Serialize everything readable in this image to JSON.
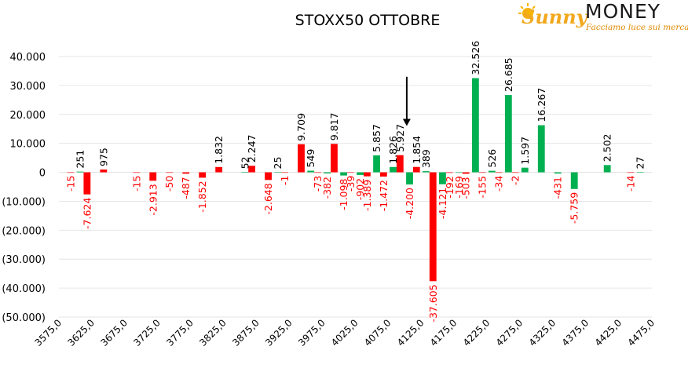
{
  "colors": {
    "put": "#ff0000",
    "call": "#00b050",
    "grid": "#e6e6e6",
    "arrow": "#000000"
  },
  "logo": {
    "script": "Sunny",
    "main": "MONEY",
    "tagline": "Facciamo luce sui mercati"
  },
  "chart_data": {
    "type": "bar",
    "title": "STOXX50 OTTOBRE",
    "xlabel": "",
    "ylabel": "",
    "ylim": [
      -50000,
      40000
    ],
    "yticks": [
      40000,
      30000,
      20000,
      10000,
      0,
      -10000,
      -20000,
      -30000,
      -40000,
      -50000
    ],
    "ytick_labels": [
      "40.000",
      "30.000",
      "20.000",
      "10.000",
      "0",
      "(10.000)",
      "(20.000)",
      "(30.000)",
      "(40.000)",
      "(50.000)"
    ],
    "xlim": [
      3575,
      4475
    ],
    "xtick_labels": [
      "3575,0",
      "3625,0",
      "3675,0",
      "3725,0",
      "3775,0",
      "3825,0",
      "3875,0",
      "3925,0",
      "3975,0",
      "4025,0",
      "4075,0",
      "4125,0",
      "4175,0",
      "4225,0",
      "4275,0",
      "4325,0",
      "4375,0",
      "4425,0",
      "4475,0"
    ],
    "annotation": {
      "type": "arrow",
      "x": 4112.5,
      "from_y": 33000,
      "to_y": 16000
    },
    "series": [
      {
        "color": "#00b050",
        "points": [
          [
            3612.5,
            251
          ],
          [
            3862.5,
            52
          ],
          [
            3912.5,
            25
          ],
          [
            3962.5,
            549
          ],
          [
            3987.5,
            -382
          ],
          [
            4012.5,
            -1098
          ],
          [
            4037.5,
            -902
          ],
          [
            4062.5,
            5857
          ],
          [
            4087.5,
            1826
          ],
          [
            4112.5,
            -4200
          ],
          [
            4137.5,
            389
          ],
          [
            4162.5,
            -4121
          ],
          [
            4187.5,
            -169
          ],
          [
            4212.5,
            32526
          ],
          [
            4237.5,
            526
          ],
          [
            4262.5,
            26685
          ],
          [
            4287.5,
            1597
          ],
          [
            4312.5,
            16267
          ],
          [
            4337.5,
            -431
          ],
          [
            4362.5,
            -5759
          ],
          [
            4412.5,
            2502
          ],
          [
            4462.5,
            27
          ]
        ],
        "labels": [
          "251",
          "52",
          "25",
          "549",
          "-382",
          "-1.098",
          "-902",
          "5.857",
          "1.826",
          "-4.200",
          "389",
          "-4.121",
          "-169",
          "32.526",
          "526",
          "26.685",
          "1.597",
          "16.267",
          "-431",
          "-5.759",
          "2.502",
          "27"
        ]
      },
      {
        "color": "#ff0000",
        "points": [
          [
            3587.5,
            -15
          ],
          [
            3612.5,
            -7624
          ],
          [
            3637.5,
            975
          ],
          [
            3687.5,
            -15
          ],
          [
            3712.5,
            -2913
          ],
          [
            3737.5,
            -50
          ],
          [
            3762.5,
            -487
          ],
          [
            3787.5,
            -1852
          ],
          [
            3812.5,
            1832
          ],
          [
            3862.5,
            2247
          ],
          [
            3887.5,
            -2648
          ],
          [
            3912.5,
            -1
          ],
          [
            3937.5,
            9709
          ],
          [
            3962.5,
            -73
          ],
          [
            3987.5,
            9817
          ],
          [
            4012.5,
            -39
          ],
          [
            4037.5,
            -1389
          ],
          [
            4062.5,
            -1472
          ],
          [
            4087.5,
            5927
          ],
          [
            4112.5,
            1854
          ],
          [
            4137.5,
            -37605
          ],
          [
            4162.5,
            -192
          ],
          [
            4187.5,
            -503
          ],
          [
            4212.5,
            -155
          ],
          [
            4237.5,
            -34
          ],
          [
            4262.5,
            -2
          ],
          [
            4437.5,
            -14
          ]
        ],
        "labels": [
          "-15",
          "-7.624",
          "975",
          "-15",
          "-2.913",
          "-50",
          "-487",
          "-1.852",
          "1.832",
          "2.247",
          "-2.648",
          "-1",
          "9.709",
          "-73",
          "9.817",
          "-39",
          "-1.389",
          "-1.472",
          "5.927",
          "1.854",
          "-37.605",
          "-192",
          "-503",
          "-155",
          "-34",
          "-2",
          "-14"
        ]
      }
    ]
  }
}
